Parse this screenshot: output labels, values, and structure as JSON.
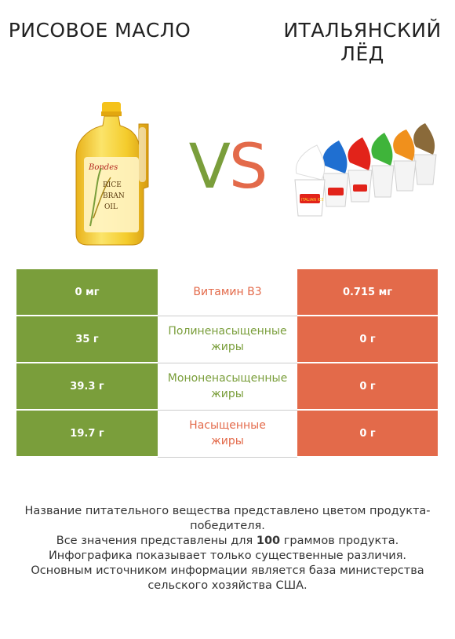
{
  "header": {
    "left_title": "Рисовое масло",
    "right_title": "Итальянский лёд",
    "vs_v": "V",
    "vs_s": "S"
  },
  "colors": {
    "left_accent": "#7a9e3b",
    "right_accent": "#e36a4a"
  },
  "images": {
    "left_label_brand": "Bondes",
    "left_label_line1": "RICE",
    "left_label_line2": "BRAN",
    "left_label_line3": "OIL",
    "right_cup_label": "ITALIAN ICE"
  },
  "rows": [
    {
      "left": "0 мг",
      "label": "Витамин B3",
      "right": "0.715 мг",
      "winner": "right"
    },
    {
      "left": "35 г",
      "label": "Полиненасыщенные\nжиры",
      "right": "0 г",
      "winner": "left"
    },
    {
      "left": "39.3 г",
      "label": "Мононенасыщенные\nжиры",
      "right": "0 г",
      "winner": "left"
    },
    {
      "left": "19.7 г",
      "label": "Насыщенные\nжиры",
      "right": "0 г",
      "winner": "right"
    }
  ],
  "footer": {
    "line1": "Название питательного вещества представлено цветом продукта-победителя.",
    "line2_pre": "Все значения представлены для ",
    "line2_bold": "100",
    "line2_post": " граммов продукта.",
    "line3": "Инфографика показывает только существенные различия.",
    "line4": "Основным источником информации является база министерства сельского хозяйства США."
  }
}
